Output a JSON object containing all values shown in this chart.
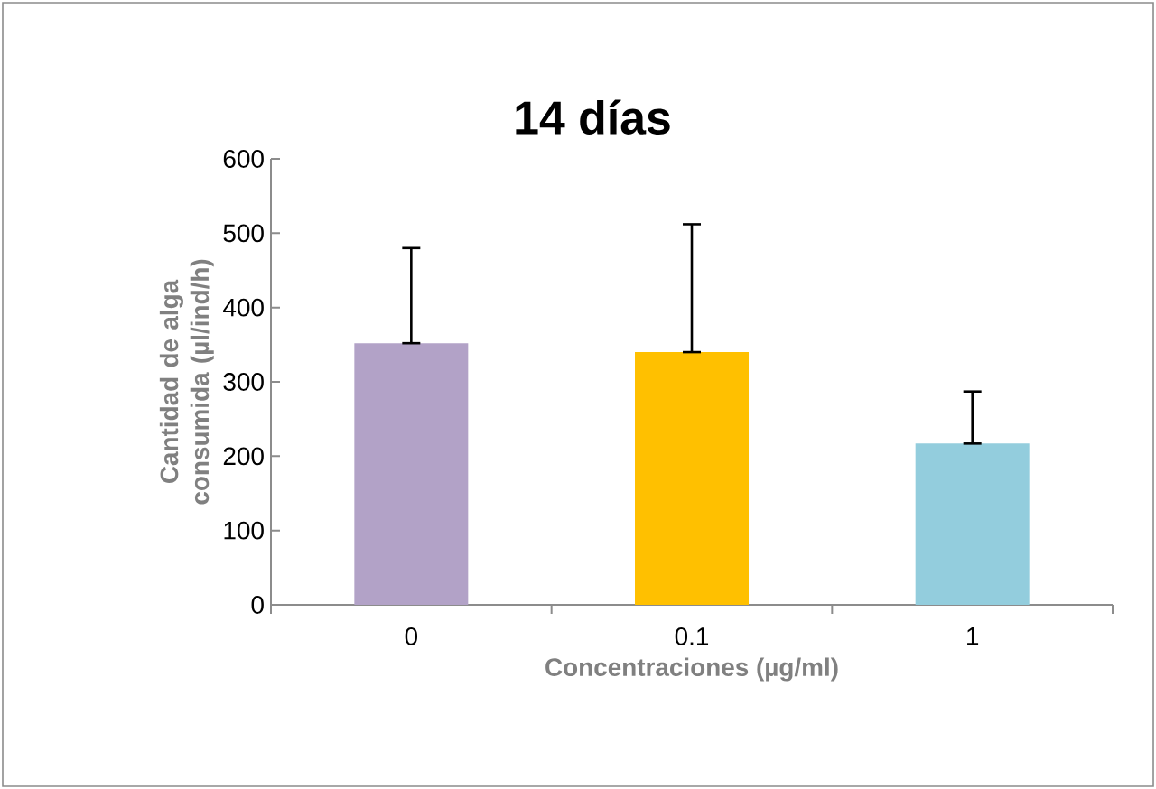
{
  "chart_data": {
    "type": "bar",
    "title": "14 días",
    "xlabel": "Concentraciones (µg/ml)",
    "ylabel": "Cantidad de alga consumida (µl/ind/h)",
    "categories": [
      "0",
      "0.1",
      "1"
    ],
    "values": [
      352,
      340,
      217
    ],
    "colors": [
      "#b2a2c7",
      "#ffc000",
      "#93cddd"
    ],
    "errors": [
      [
        352,
        480
      ],
      [
        340,
        512
      ],
      [
        217,
        287
      ]
    ],
    "ylim": [
      0,
      600
    ],
    "yticks": [
      0,
      100,
      200,
      300,
      400,
      500,
      600
    ],
    "grid": false
  }
}
